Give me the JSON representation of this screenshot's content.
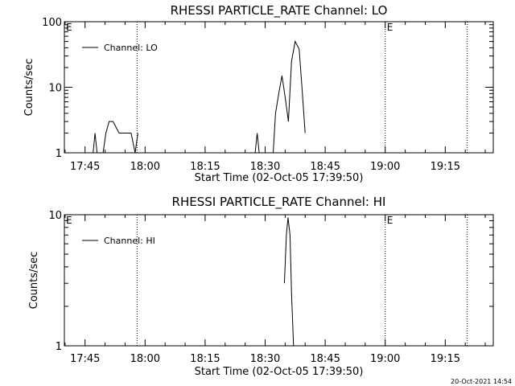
{
  "footer": {
    "timestamp": "20-Oct-2021 14:54"
  },
  "chart_data": [
    {
      "type": "line",
      "title": "RHESSI PARTICLE_RATE Channel: LO",
      "xlabel": "Start Time (02-Oct-05 17:39:50)",
      "ylabel": "Counts/sec",
      "y_scale": "log",
      "ylim": [
        1,
        100
      ],
      "y_ticks": [
        {
          "value": 1,
          "label": "1"
        },
        {
          "value": 10,
          "label": "10"
        },
        {
          "value": 100,
          "label": "100"
        }
      ],
      "x_ticks": [
        "17:45",
        "18:00",
        "18:15",
        "18:30",
        "18:45",
        "19:00",
        "19:15"
      ],
      "x_tick_minutes": [
        45,
        60,
        75,
        90,
        105,
        120,
        135
      ],
      "xlim_minutes": [
        39.83,
        147
      ],
      "time_origin": "17:00",
      "markers": [
        {
          "label": "E",
          "minute": 39.83,
          "dotted": false
        },
        {
          "label": "",
          "minute": 58,
          "dotted": true
        },
        {
          "label": "E",
          "minute": 120,
          "dotted": true
        },
        {
          "label": "",
          "minute": 140.5,
          "dotted": true
        }
      ],
      "legend": {
        "entries": [
          "Channel: LO"
        ],
        "position": "top-left"
      },
      "segments": [
        {
          "x": [
            47,
            47.5,
            48
          ],
          "y": [
            1,
            2,
            1
          ]
        },
        {
          "x": [
            49.5,
            50.2,
            51,
            52,
            53.5,
            55,
            56.5,
            57.5
          ],
          "y": [
            1,
            2,
            3,
            3,
            2,
            2,
            2,
            1
          ]
        },
        {
          "x": [
            57.5,
            58.2
          ],
          "y": [
            1,
            2
          ]
        },
        {
          "x": [
            58.2,
            60
          ],
          "y": [
            1,
            1
          ]
        },
        {
          "x": [
            87.5,
            88,
            88.5
          ],
          "y": [
            1,
            2,
            1
          ]
        },
        {
          "x": [
            92,
            92.6,
            93.4,
            94.2,
            95,
            95.8,
            96.6,
            97.5,
            98.5,
            99.3,
            100
          ],
          "y": [
            1,
            4,
            8,
            15,
            7,
            3,
            25,
            50,
            38,
            8,
            2
          ]
        }
      ]
    },
    {
      "type": "line",
      "title": "RHESSI PARTICLE_RATE Channel: HI",
      "xlabel": "Start Time (02-Oct-05 17:39:50)",
      "ylabel": "Counts/sec",
      "y_scale": "log",
      "ylim": [
        1,
        10
      ],
      "y_ticks": [
        {
          "value": 1,
          "label": "1"
        },
        {
          "value": 10,
          "label": "10"
        }
      ],
      "x_ticks": [
        "17:45",
        "18:00",
        "18:15",
        "18:30",
        "18:45",
        "19:00",
        "19:15"
      ],
      "x_tick_minutes": [
        45,
        60,
        75,
        90,
        105,
        120,
        135
      ],
      "xlim_minutes": [
        39.83,
        147
      ],
      "time_origin": "17:00",
      "markers": [
        {
          "label": "E",
          "minute": 39.83,
          "dotted": false
        },
        {
          "label": "",
          "minute": 58,
          "dotted": true
        },
        {
          "label": "E",
          "minute": 120,
          "dotted": true
        },
        {
          "label": "",
          "minute": 140.5,
          "dotted": true
        }
      ],
      "legend": {
        "entries": [
          "Channel: HI"
        ],
        "position": "top-left"
      },
      "segments": [
        {
          "x": [
            94.8,
            95.3,
            95.7,
            96.2,
            96.6,
            97.1
          ],
          "y": [
            3,
            7,
            9.5,
            7,
            2.5,
            1
          ]
        }
      ]
    }
  ]
}
